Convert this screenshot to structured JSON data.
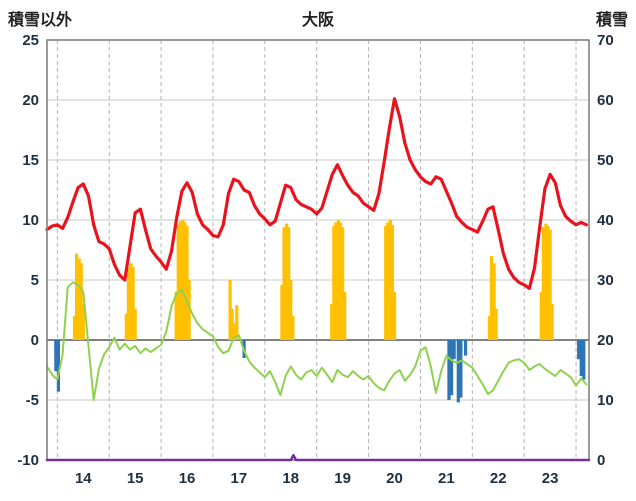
{
  "header": {
    "title": "大阪",
    "left_label": "積雪以外",
    "right_label": "積雪"
  },
  "chart_data": {
    "type": "combo",
    "title": "大阪",
    "left_axis": {
      "label": "積雪以外",
      "min": -10,
      "max": 25,
      "ticks": [
        25,
        20,
        15,
        10,
        5,
        0,
        -5,
        -10
      ]
    },
    "right_axis": {
      "label": "積雪",
      "min": 0,
      "max": 70,
      "ticks": [
        70,
        60,
        50,
        40,
        30,
        20,
        10,
        0
      ]
    },
    "x_axis": {
      "min": 13.8,
      "max": 24.25,
      "labels": [
        "14",
        "15",
        "16",
        "17",
        "18",
        "19",
        "20",
        "21",
        "22",
        "23"
      ]
    },
    "grid": {
      "h_color": "#c8c8c8",
      "v_color": "#b4b4b4",
      "zero_color": "#808080",
      "border_color": "#808080"
    },
    "text_color": "#203040",
    "series": [
      {
        "name": "orange-bars",
        "type": "bar",
        "axis": "left",
        "color": "#ffc000",
        "points": [
          [
            14.33,
            2.0
          ],
          [
            14.37,
            7.2
          ],
          [
            14.42,
            6.8
          ],
          [
            14.46,
            6.4
          ],
          [
            14.5,
            3.0
          ],
          [
            15.33,
            2.2
          ],
          [
            15.37,
            6.0
          ],
          [
            15.42,
            6.4
          ],
          [
            15.46,
            6.1
          ],
          [
            15.5,
            2.6
          ],
          [
            16.29,
            4.0
          ],
          [
            16.33,
            9.6
          ],
          [
            16.37,
            9.9
          ],
          [
            16.42,
            10.0
          ],
          [
            16.46,
            9.8
          ],
          [
            16.5,
            9.5
          ],
          [
            16.54,
            5.0
          ],
          [
            17.33,
            5.0
          ],
          [
            17.37,
            2.6
          ],
          [
            17.42,
            1.4
          ],
          [
            17.46,
            2.9
          ],
          [
            18.33,
            4.6
          ],
          [
            18.37,
            9.4
          ],
          [
            18.42,
            9.7
          ],
          [
            18.46,
            9.4
          ],
          [
            18.5,
            5.0
          ],
          [
            18.54,
            2.0
          ],
          [
            19.29,
            3.0
          ],
          [
            19.33,
            9.5
          ],
          [
            19.37,
            9.8
          ],
          [
            19.42,
            10.0
          ],
          [
            19.46,
            9.8
          ],
          [
            19.5,
            9.4
          ],
          [
            19.54,
            4.0
          ],
          [
            20.33,
            9.5
          ],
          [
            20.37,
            9.8
          ],
          [
            20.42,
            10.0
          ],
          [
            20.46,
            9.6
          ],
          [
            20.5,
            4.0
          ],
          [
            22.33,
            2.0
          ],
          [
            22.37,
            7.0
          ],
          [
            22.42,
            6.4
          ],
          [
            22.46,
            2.6
          ],
          [
            23.33,
            4.0
          ],
          [
            23.37,
            9.4
          ],
          [
            23.42,
            9.7
          ],
          [
            23.46,
            9.5
          ],
          [
            23.5,
            9.2
          ],
          [
            23.54,
            3.0
          ]
        ]
      },
      {
        "name": "blue-bars",
        "type": "bar",
        "axis": "left",
        "color": "#2e75b6",
        "points": [
          [
            13.97,
            -2.6
          ],
          [
            14.02,
            -4.3
          ],
          [
            17.6,
            -1.5
          ],
          [
            21.55,
            -5.0
          ],
          [
            21.6,
            -4.6
          ],
          [
            21.65,
            -1.6
          ],
          [
            21.73,
            -5.2
          ],
          [
            21.78,
            -4.8
          ],
          [
            21.87,
            -1.3
          ],
          [
            24.05,
            -1.6
          ],
          [
            24.1,
            -3.0
          ],
          [
            24.15,
            -3.3
          ]
        ]
      },
      {
        "name": "purple-line",
        "type": "line",
        "axis": "right",
        "color": "#7030a0",
        "width": 2.5,
        "points": [
          [
            13.8,
            0
          ],
          [
            18.5,
            0
          ],
          [
            18.55,
            0.8
          ],
          [
            18.6,
            0
          ],
          [
            24.25,
            0
          ]
        ]
      },
      {
        "name": "green-line",
        "type": "line",
        "axis": "left",
        "color": "#8fd14f",
        "width": 2,
        "points": [
          [
            13.8,
            -2.2
          ],
          [
            13.9,
            -2.9
          ],
          [
            14.0,
            -3.3
          ],
          [
            14.1,
            -1.2
          ],
          [
            14.2,
            4.4
          ],
          [
            14.3,
            4.8
          ],
          [
            14.4,
            4.6
          ],
          [
            14.5,
            4.0
          ],
          [
            14.6,
            -0.5
          ],
          [
            14.7,
            -5.0
          ],
          [
            14.8,
            -2.4
          ],
          [
            14.9,
            -1.2
          ],
          [
            15.0,
            -0.6
          ],
          [
            15.1,
            0.2
          ],
          [
            15.2,
            -0.8
          ],
          [
            15.3,
            -0.3
          ],
          [
            15.4,
            -0.8
          ],
          [
            15.5,
            -0.5
          ],
          [
            15.6,
            -1.1
          ],
          [
            15.7,
            -0.7
          ],
          [
            15.8,
            -1.0
          ],
          [
            15.9,
            -0.7
          ],
          [
            16.0,
            -0.4
          ],
          [
            16.1,
            0.7
          ],
          [
            16.2,
            2.8
          ],
          [
            16.3,
            3.9
          ],
          [
            16.4,
            4.2
          ],
          [
            16.5,
            3.2
          ],
          [
            16.6,
            2.2
          ],
          [
            16.7,
            1.4
          ],
          [
            16.8,
            0.9
          ],
          [
            16.9,
            0.6
          ],
          [
            17.0,
            0.3
          ],
          [
            17.1,
            -0.6
          ],
          [
            17.2,
            -1.1
          ],
          [
            17.3,
            -0.9
          ],
          [
            17.4,
            0.2
          ],
          [
            17.5,
            0.4
          ],
          [
            17.6,
            -0.9
          ],
          [
            17.7,
            -1.8
          ],
          [
            17.8,
            -2.3
          ],
          [
            17.9,
            -2.7
          ],
          [
            18.0,
            -3.1
          ],
          [
            18.1,
            -2.6
          ],
          [
            18.2,
            -3.5
          ],
          [
            18.3,
            -4.6
          ],
          [
            18.4,
            -3.0
          ],
          [
            18.5,
            -2.2
          ],
          [
            18.6,
            -2.9
          ],
          [
            18.7,
            -3.3
          ],
          [
            18.8,
            -2.7
          ],
          [
            18.9,
            -2.5
          ],
          [
            19.0,
            -3.0
          ],
          [
            19.1,
            -2.3
          ],
          [
            19.2,
            -2.9
          ],
          [
            19.3,
            -3.5
          ],
          [
            19.4,
            -2.5
          ],
          [
            19.5,
            -2.9
          ],
          [
            19.6,
            -3.1
          ],
          [
            19.7,
            -2.6
          ],
          [
            19.8,
            -3.0
          ],
          [
            19.9,
            -3.3
          ],
          [
            20.0,
            -3.0
          ],
          [
            20.1,
            -3.6
          ],
          [
            20.2,
            -4.0
          ],
          [
            20.3,
            -4.2
          ],
          [
            20.4,
            -3.4
          ],
          [
            20.5,
            -2.8
          ],
          [
            20.6,
            -2.5
          ],
          [
            20.7,
            -3.4
          ],
          [
            20.8,
            -2.9
          ],
          [
            20.9,
            -2.2
          ],
          [
            21.0,
            -0.9
          ],
          [
            21.1,
            -0.6
          ],
          [
            21.2,
            -2.2
          ],
          [
            21.3,
            -4.4
          ],
          [
            21.4,
            -2.6
          ],
          [
            21.5,
            -1.3
          ],
          [
            21.6,
            -1.7
          ],
          [
            21.7,
            -1.9
          ],
          [
            21.8,
            -1.7
          ],
          [
            21.9,
            -2.0
          ],
          [
            22.0,
            -2.3
          ],
          [
            22.1,
            -3.0
          ],
          [
            22.2,
            -3.7
          ],
          [
            22.3,
            -4.5
          ],
          [
            22.4,
            -4.2
          ],
          [
            22.5,
            -3.4
          ],
          [
            22.6,
            -2.6
          ],
          [
            22.7,
            -1.9
          ],
          [
            22.8,
            -1.7
          ],
          [
            22.9,
            -1.6
          ],
          [
            23.0,
            -1.9
          ],
          [
            23.1,
            -2.5
          ],
          [
            23.2,
            -2.2
          ],
          [
            23.3,
            -2.0
          ],
          [
            23.4,
            -2.4
          ],
          [
            23.5,
            -2.7
          ],
          [
            23.6,
            -3.0
          ],
          [
            23.7,
            -2.5
          ],
          [
            23.8,
            -2.8
          ],
          [
            23.9,
            -3.1
          ],
          [
            24.0,
            -3.8
          ],
          [
            24.1,
            -3.2
          ],
          [
            24.2,
            -3.7
          ]
        ]
      },
      {
        "name": "red-line",
        "type": "line",
        "axis": "left",
        "color": "#e8131d",
        "width": 3.2,
        "points": [
          [
            13.8,
            9.2
          ],
          [
            13.9,
            9.5
          ],
          [
            14.0,
            9.6
          ],
          [
            14.1,
            9.3
          ],
          [
            14.2,
            10.2
          ],
          [
            14.3,
            11.5
          ],
          [
            14.4,
            12.7
          ],
          [
            14.5,
            13.0
          ],
          [
            14.6,
            12.0
          ],
          [
            14.7,
            9.6
          ],
          [
            14.8,
            8.2
          ],
          [
            14.9,
            8.0
          ],
          [
            15.0,
            7.6
          ],
          [
            15.1,
            6.3
          ],
          [
            15.2,
            5.4
          ],
          [
            15.3,
            5.0
          ],
          [
            15.4,
            7.8
          ],
          [
            15.5,
            10.6
          ],
          [
            15.6,
            10.9
          ],
          [
            15.7,
            9.2
          ],
          [
            15.8,
            7.6
          ],
          [
            15.9,
            7.0
          ],
          [
            16.0,
            6.5
          ],
          [
            16.1,
            5.9
          ],
          [
            16.2,
            7.4
          ],
          [
            16.3,
            10.2
          ],
          [
            16.4,
            12.4
          ],
          [
            16.5,
            13.1
          ],
          [
            16.6,
            12.3
          ],
          [
            16.7,
            10.5
          ],
          [
            16.8,
            9.6
          ],
          [
            16.9,
            9.2
          ],
          [
            17.0,
            8.7
          ],
          [
            17.1,
            8.6
          ],
          [
            17.2,
            9.6
          ],
          [
            17.3,
            12.2
          ],
          [
            17.4,
            13.4
          ],
          [
            17.5,
            13.2
          ],
          [
            17.6,
            12.5
          ],
          [
            17.7,
            12.3
          ],
          [
            17.8,
            11.2
          ],
          [
            17.9,
            10.5
          ],
          [
            18.0,
            10.1
          ],
          [
            18.1,
            9.6
          ],
          [
            18.2,
            9.9
          ],
          [
            18.3,
            11.4
          ],
          [
            18.4,
            12.9
          ],
          [
            18.5,
            12.7
          ],
          [
            18.6,
            11.7
          ],
          [
            18.7,
            11.3
          ],
          [
            18.8,
            11.1
          ],
          [
            18.9,
            10.9
          ],
          [
            19.0,
            10.5
          ],
          [
            19.1,
            11.0
          ],
          [
            19.2,
            12.4
          ],
          [
            19.3,
            13.8
          ],
          [
            19.4,
            14.6
          ],
          [
            19.5,
            13.7
          ],
          [
            19.6,
            12.9
          ],
          [
            19.7,
            12.3
          ],
          [
            19.8,
            12.0
          ],
          [
            19.9,
            11.4
          ],
          [
            20.0,
            11.1
          ],
          [
            20.1,
            10.8
          ],
          [
            20.2,
            12.2
          ],
          [
            20.3,
            14.8
          ],
          [
            20.4,
            17.6
          ],
          [
            20.5,
            20.1
          ],
          [
            20.6,
            18.6
          ],
          [
            20.7,
            16.4
          ],
          [
            20.8,
            15.0
          ],
          [
            20.9,
            14.2
          ],
          [
            21.0,
            13.6
          ],
          [
            21.1,
            13.2
          ],
          [
            21.2,
            13.0
          ],
          [
            21.3,
            13.6
          ],
          [
            21.4,
            13.4
          ],
          [
            21.5,
            12.4
          ],
          [
            21.6,
            11.4
          ],
          [
            21.7,
            10.3
          ],
          [
            21.8,
            9.8
          ],
          [
            21.9,
            9.4
          ],
          [
            22.0,
            9.2
          ],
          [
            22.1,
            9.0
          ],
          [
            22.2,
            9.9
          ],
          [
            22.3,
            10.9
          ],
          [
            22.4,
            11.1
          ],
          [
            22.5,
            9.2
          ],
          [
            22.6,
            7.2
          ],
          [
            22.7,
            5.9
          ],
          [
            22.8,
            5.2
          ],
          [
            22.9,
            4.8
          ],
          [
            23.0,
            4.6
          ],
          [
            23.1,
            4.3
          ],
          [
            23.2,
            6.0
          ],
          [
            23.3,
            9.4
          ],
          [
            23.4,
            12.6
          ],
          [
            23.5,
            13.8
          ],
          [
            23.6,
            13.1
          ],
          [
            23.7,
            11.2
          ],
          [
            23.8,
            10.3
          ],
          [
            23.9,
            9.9
          ],
          [
            24.0,
            9.6
          ],
          [
            24.1,
            9.8
          ],
          [
            24.2,
            9.6
          ]
        ]
      }
    ]
  }
}
